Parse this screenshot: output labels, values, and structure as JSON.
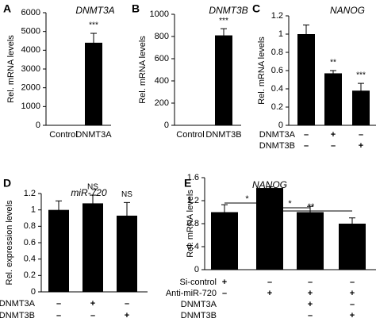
{
  "chart_data": [
    {
      "type": "bar",
      "panel": "A",
      "title": "DNMT3A",
      "y_label": "Rel. mRNA levels",
      "color": "#000000",
      "categories": [
        "Control",
        "DNMT3A"
      ],
      "values": [
        10,
        4400
      ],
      "errors": [
        0,
        500
      ],
      "annotations": [
        null,
        "***"
      ],
      "ylim": [
        0,
        6000
      ],
      "yticks": [
        0,
        1000,
        2000,
        3000,
        4000,
        5000,
        6000
      ]
    },
    {
      "type": "bar",
      "panel": "B",
      "title": "DNMT3B",
      "y_label": "Rel. mRNA levels",
      "color": "#000000",
      "categories": [
        "Control",
        "DNMT3B"
      ],
      "values": [
        3,
        810
      ],
      "errors": [
        0,
        60
      ],
      "annotations": [
        null,
        "***"
      ],
      "ylim": [
        0,
        1000
      ],
      "yticks": [
        0,
        200,
        400,
        600,
        800,
        1000
      ]
    },
    {
      "type": "bar",
      "panel": "C",
      "title": "NANOG",
      "y_label": "Rel. mRNA levels",
      "color": "#000000",
      "conditions": [
        {
          "name": "DNMT3A",
          "marks": [
            "–",
            "+",
            "–"
          ]
        },
        {
          "name": "DNMT3B",
          "marks": [
            "–",
            "–",
            "+"
          ]
        }
      ],
      "values": [
        1.0,
        0.57,
        0.38
      ],
      "errors": [
        0.1,
        0.03,
        0.08
      ],
      "annotations": [
        null,
        "**",
        "***"
      ],
      "ylim": [
        0,
        1.2
      ],
      "yticks": [
        0,
        0.2,
        0.4,
        0.6,
        0.8,
        1,
        1.2
      ]
    },
    {
      "type": "bar",
      "panel": "D",
      "title": "miR-720",
      "y_label": "Rel. expression levels",
      "color": "#000000",
      "conditions": [
        {
          "name": "DNMT3A",
          "marks": [
            "–",
            "+",
            "–"
          ]
        },
        {
          "name": "DNMT3B",
          "marks": [
            "–",
            "–",
            "+"
          ]
        }
      ],
      "values": [
        1.0,
        1.08,
        0.93
      ],
      "errors": [
        0.11,
        0.1,
        0.16
      ],
      "annotations": [
        null,
        "NS",
        "NS"
      ],
      "ylim": [
        0,
        1.2
      ],
      "yticks": [
        0,
        0.2,
        0.4,
        0.6,
        0.8,
        1,
        1.2
      ]
    },
    {
      "type": "bar",
      "panel": "E",
      "title": "NANOG",
      "y_label": "Rel. mRNA levels",
      "color": "#000000",
      "conditions": [
        {
          "name": "Si-control",
          "marks": [
            "+",
            "–",
            "–",
            "–"
          ]
        },
        {
          "name": "Anti-miR-720",
          "marks": [
            "–",
            "+",
            "+",
            "+"
          ]
        },
        {
          "name": "DNMT3A",
          "marks": [
            null,
            null,
            "+",
            "–"
          ]
        },
        {
          "name": "DNMT3B",
          "marks": [
            null,
            null,
            "–",
            "+"
          ]
        }
      ],
      "values": [
        1.0,
        1.42,
        1.0,
        0.8
      ],
      "errors": [
        0.13,
        0.02,
        0.1,
        0.1
      ],
      "annotations": [
        null,
        null,
        null,
        null
      ],
      "comparisons": [
        {
          "from": 0,
          "to": 1,
          "label": "*"
        },
        {
          "from": 1,
          "to": 2,
          "label": "*"
        },
        {
          "from": 1,
          "to": 3,
          "label": "**"
        }
      ],
      "ylim": [
        0,
        1.6
      ],
      "yticks": [
        0,
        0.4,
        0.8,
        1.2,
        1.6
      ]
    }
  ]
}
